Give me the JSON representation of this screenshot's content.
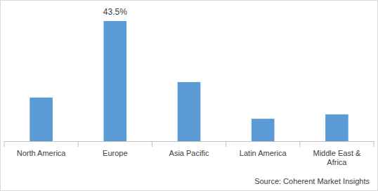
{
  "chart_data": {
    "type": "bar",
    "categories": [
      "North America",
      "Europe",
      "Asia Pacific",
      "Latin America",
      "Middle East & Africa"
    ],
    "values": [
      15.8,
      43.5,
      21.4,
      8.1,
      9.7
    ],
    "value_labels": [
      null,
      "43.5%",
      null,
      null,
      null
    ],
    "data_labels": true,
    "color": "#5b9bd5",
    "tick_labels": "x",
    "annotations": [
      "Source: Coherent Market Insights"
    ]
  }
}
